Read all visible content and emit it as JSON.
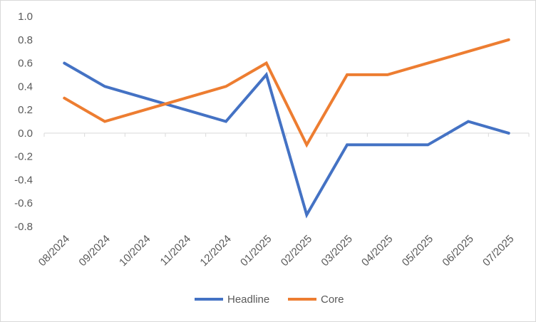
{
  "chart_data": {
    "type": "line",
    "title": "",
    "xlabel": "",
    "ylabel": "",
    "categories": [
      "08/2024",
      "09/2024",
      "10/2024",
      "11/2024",
      "12/2024",
      "01/2025",
      "02/2025",
      "03/2025",
      "04/2025",
      "05/2025",
      "06/2025",
      "07/2025"
    ],
    "y_ticks": [
      "1.0",
      "0.8",
      "0.6",
      "0.4",
      "0.2",
      "0.0",
      "-0.2",
      "-0.4",
      "-0.6",
      "-0.8"
    ],
    "ylim": [
      -0.8,
      1.0
    ],
    "grid": false,
    "legend_position": "bottom",
    "series": [
      {
        "name": "Headline",
        "color": "#4472C4",
        "values": [
          0.6,
          0.4,
          0.3,
          0.2,
          0.1,
          0.5,
          -0.7,
          -0.1,
          -0.1,
          -0.1,
          0.1,
          0.0
        ]
      },
      {
        "name": "Core",
        "color": "#ED7D31",
        "values": [
          0.3,
          0.1,
          0.2,
          0.3,
          0.4,
          0.6,
          -0.1,
          0.5,
          0.5,
          0.6,
          0.7,
          0.8
        ]
      }
    ]
  }
}
